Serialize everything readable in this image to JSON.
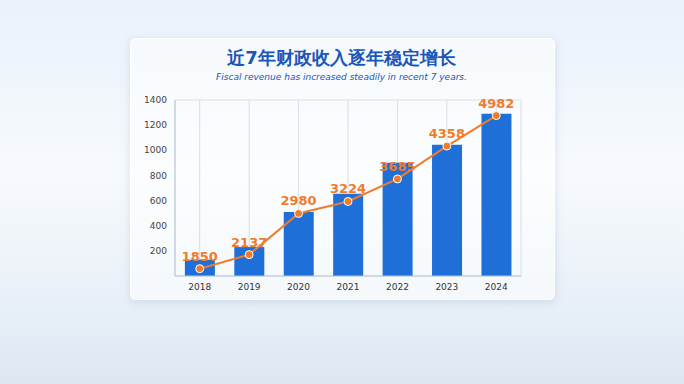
{
  "chart_data": {
    "type": "bar",
    "title": "近7年财政收入逐年稳定增长",
    "subtitle": "Fiscal revenue has increased steadily in recent 7 years.",
    "categories": [
      "2018",
      "2019",
      "2020",
      "2021",
      "2022",
      "2023",
      "2024"
    ],
    "series": [
      {
        "type": "bar",
        "color": "#1f6fd8",
        "values": [
          130,
          230,
          510,
          655,
          900,
          1045,
          1290
        ]
      },
      {
        "type": "line",
        "axis": "y2",
        "color": "#f07c2a",
        "marker": "circle",
        "data_labels": true,
        "values": [
          1850,
          2137,
          2980,
          3224,
          3685,
          4358,
          4982
        ]
      }
    ],
    "ylim": [
      0,
      1400
    ],
    "yticks": [
      200,
      400,
      600,
      800,
      1000,
      1200,
      1400
    ],
    "y2lim": [
      1700,
      5300
    ],
    "grid": true
  }
}
